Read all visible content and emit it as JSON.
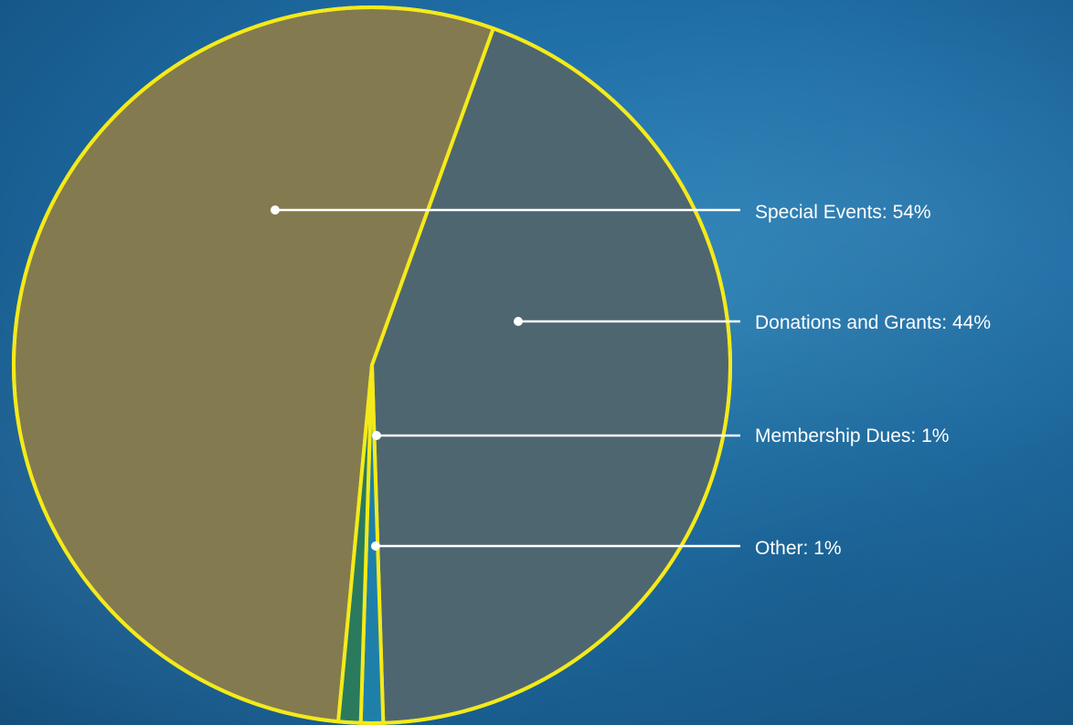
{
  "chart_data": {
    "type": "pie",
    "title": "",
    "legend": "none",
    "border_color": "#f4ea1a",
    "slices": [
      {
        "label": "Special Events: 54%",
        "value": 54,
        "color": "#847a4f"
      },
      {
        "label": "Donations and Grants: 44%",
        "value": 44,
        "color": "#4e6670"
      },
      {
        "label": "Membership Dues: 1%",
        "value": 1,
        "color": "#1e7fa9"
      },
      {
        "label": "Other: 1%",
        "value": 1,
        "color": "#2a7a5e"
      }
    ]
  }
}
